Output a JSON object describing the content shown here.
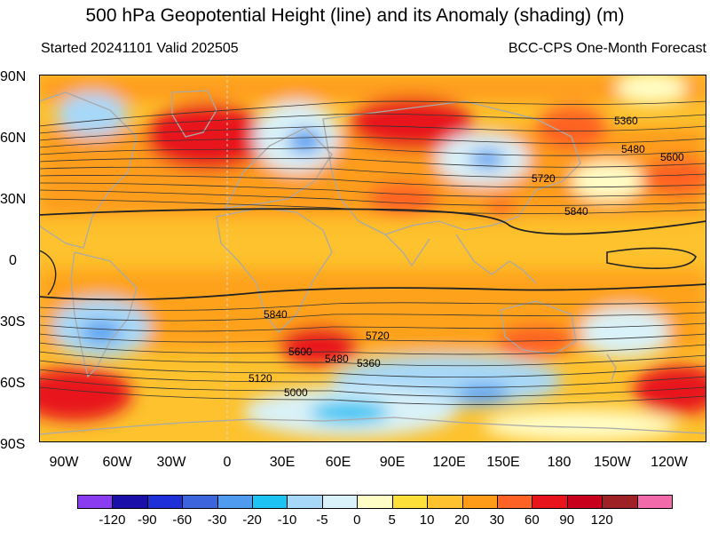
{
  "title": "500 hPa Geopotential Height (line) and its Anomaly (shading) (m)",
  "subtitle_left": "Started 20241101  Valid 202505",
  "subtitle_right": "BCC-CPS One-Month Forecast",
  "y_ticks": [
    "90N",
    "60N",
    "30N",
    "0",
    "30S",
    "60S",
    "90S"
  ],
  "x_ticks": [
    "90W",
    "60W",
    "30W",
    "0",
    "30E",
    "60E",
    "90E",
    "120E",
    "150E",
    "180",
    "150W",
    "120W"
  ],
  "contour_labels": [
    "5360",
    "5480",
    "5600",
    "5720",
    "5840",
    "5840",
    "5720",
    "5600",
    "5480",
    "5360",
    "5120",
    "5000"
  ],
  "colorbar": {
    "labels": [
      "-120",
      "-90",
      "-60",
      "-30",
      "-20",
      "-10",
      "-5",
      "0",
      "5",
      "10",
      "20",
      "30",
      "60",
      "90",
      "120"
    ],
    "colors": [
      "#8a3df0",
      "#1a0fa8",
      "#2030d8",
      "#3c64dc",
      "#4f9bf0",
      "#1cc3f3",
      "#a7d8f8",
      "#d9f1f8",
      "#fffdc6",
      "#fddf3a",
      "#fdc22e",
      "#fe9c1a",
      "#fe6224",
      "#e8141c",
      "#c8001c",
      "#9e2126",
      "#f36aaa"
    ]
  },
  "chart_data": {
    "type": "heatmap",
    "title": "500 hPa Geopotential Height (line) and its Anomaly (shading) (m)",
    "levels": [
      -120,
      -90,
      -60,
      -30,
      -20,
      -10,
      -5,
      0,
      5,
      10,
      20,
      30,
      60,
      90,
      120
    ],
    "contour_levels": [
      5000,
      5120,
      5360,
      5480,
      5600,
      5720,
      5840
    ]
  }
}
